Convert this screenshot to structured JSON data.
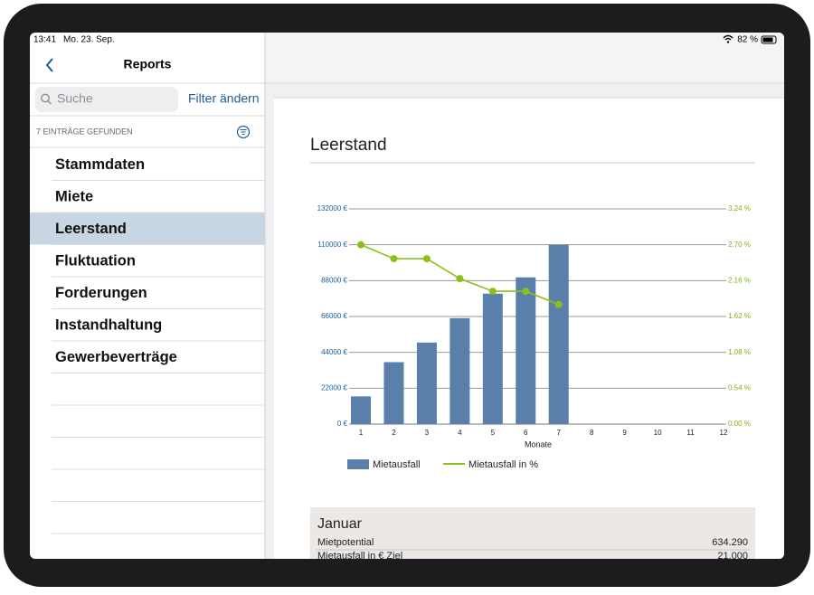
{
  "status_bar": {
    "time": "13:41",
    "date": "Mo. 23. Sep.",
    "battery": "82 %"
  },
  "sidebar": {
    "title": "Reports",
    "search_placeholder": "Suche",
    "filter_button": "Filter ändern",
    "count": "7 EINTRÄGE GEFUNDEN",
    "items": [
      "Stammdaten",
      "Miete",
      "Leerstand",
      "Fluktuation",
      "Forderungen",
      "Instandhaltung",
      "Gewerbeverträge"
    ],
    "selected": 2
  },
  "chart_data": {
    "type": "bar",
    "title": "Leerstand",
    "x_label": "Monate",
    "categories": [
      "1",
      "2",
      "3",
      "4",
      "5",
      "6",
      "7",
      "8",
      "9",
      "10",
      "11",
      "12"
    ],
    "series": [
      {
        "name": "Mietausfall",
        "type": "bar",
        "color": "#5b7fab",
        "values": [
          17000,
          38000,
          50000,
          65000,
          80000,
          90000,
          110000,
          null,
          null,
          null,
          null,
          null
        ]
      },
      {
        "name": "Mietausfall in %",
        "type": "line",
        "axis": "y2",
        "color": "#8cbf1a",
        "values": [
          2.7,
          2.49,
          2.49,
          2.19,
          2.0,
          2.0,
          1.8,
          null,
          null,
          null,
          null,
          null
        ]
      }
    ],
    "ylim": [
      0,
      132000
    ],
    "yticks": [
      {
        "value": 0,
        "label": "0 €"
      },
      {
        "value": 22000,
        "label": "22000 €"
      },
      {
        "value": 44000,
        "label": "44000 €"
      },
      {
        "value": 66000,
        "label": "66000 €"
      },
      {
        "value": 88000,
        "label": "88000 €"
      },
      {
        "value": 110000,
        "label": "110000 €"
      },
      {
        "value": 132000,
        "label": "132000 €"
      }
    ],
    "y2lim": [
      0,
      3.24
    ],
    "y2ticks": [
      {
        "value": 0,
        "label": "0.00 %"
      },
      {
        "value": 0.54,
        "label": "0.54 %"
      },
      {
        "value": 1.08,
        "label": "1.08 %"
      },
      {
        "value": 1.62,
        "label": "1.62 %"
      },
      {
        "value": 2.16,
        "label": "2.16 %"
      },
      {
        "value": 2.7,
        "label": "2.70 %"
      },
      {
        "value": 3.24,
        "label": "3.24 %"
      }
    ],
    "grid": true,
    "legend": "bottom"
  },
  "summary": {
    "month": "Januar",
    "rows": [
      [
        "Mietpotential",
        "634.290"
      ],
      [
        "Mietausfall in € Ziel",
        "21.000"
      ]
    ]
  }
}
